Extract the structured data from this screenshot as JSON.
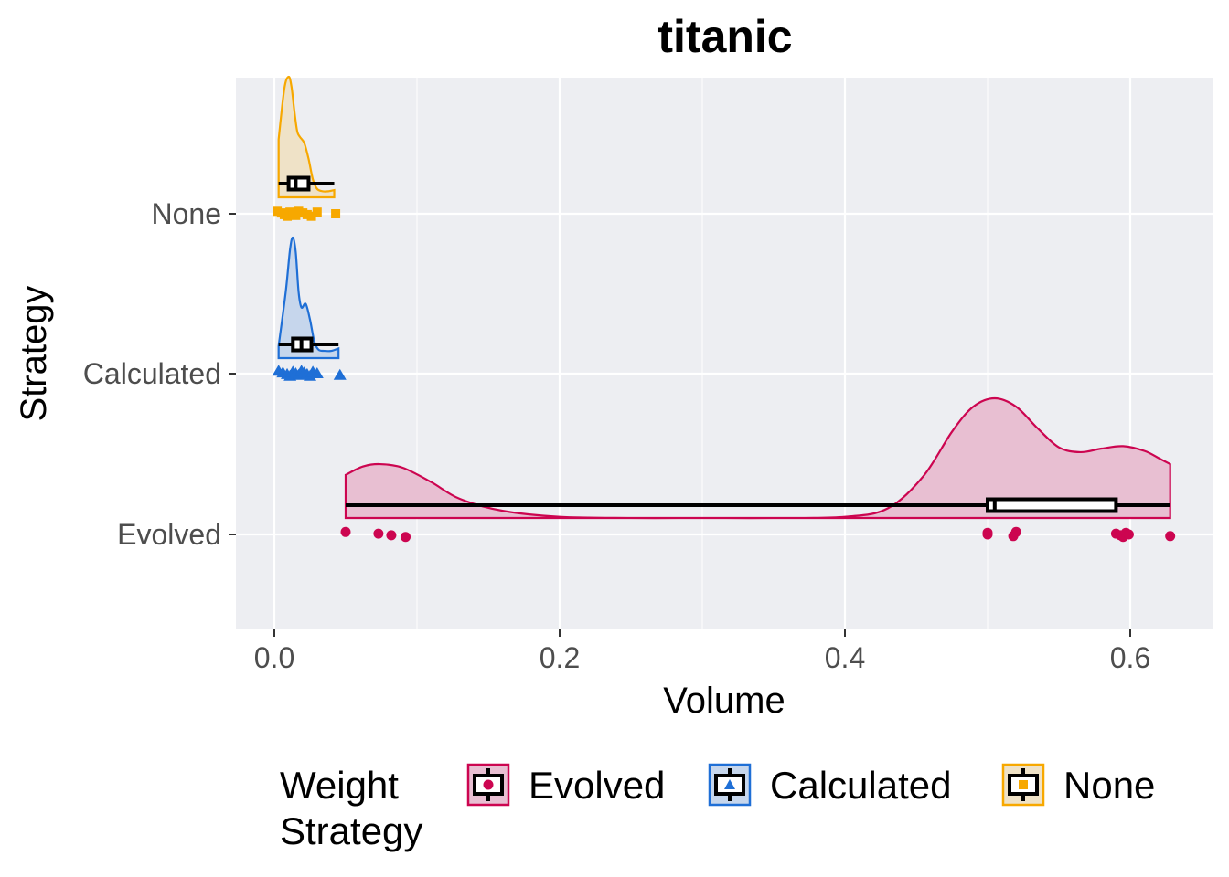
{
  "chart_data": {
    "type": "raincloud",
    "title": "titanic",
    "xlabel": "Volume",
    "ylabel": "Strategy",
    "xlim": [
      -0.066,
      0.65
    ],
    "x_ticks": [
      0.0,
      0.2,
      0.4,
      0.6
    ],
    "x_tick_labels": [
      "0.0",
      "0.2",
      "0.4",
      "0.6"
    ],
    "categories": [
      "Evolved",
      "Calculated",
      "None"
    ],
    "grid": true,
    "legend_placement": "bottom",
    "legend_title": "Weight\nStrategy",
    "series": [
      {
        "name": "Evolved",
        "color": "#cc0550",
        "fill": "#e8bfd2",
        "marker": "circle",
        "box": {
          "min": 0.05,
          "q1": 0.5,
          "median": 0.505,
          "q3": 0.59,
          "max": 0.628
        },
        "points": [
          0.05,
          0.073,
          0.082,
          0.092,
          0.5,
          0.5,
          0.518,
          0.52,
          0.59,
          0.593,
          0.595,
          0.597,
          0.599,
          0.628
        ],
        "density_x": [
          0.05,
          0.062,
          0.074,
          0.09,
          0.11,
          0.13,
          0.16,
          0.2,
          0.25,
          0.3,
          0.35,
          0.4,
          0.43,
          0.455,
          0.475,
          0.49,
          0.505,
          0.52,
          0.535,
          0.55,
          0.565,
          0.58,
          0.595,
          0.61,
          0.62,
          0.628
        ],
        "density_y": [
          0.36,
          0.43,
          0.45,
          0.42,
          0.3,
          0.16,
          0.06,
          0.01,
          0.0,
          0.0,
          0.0,
          0.01,
          0.08,
          0.35,
          0.72,
          0.93,
          1.0,
          0.93,
          0.75,
          0.59,
          0.55,
          0.58,
          0.6,
          0.56,
          0.5,
          0.45
        ]
      },
      {
        "name": "Calculated",
        "color": "#1f6fd6",
        "fill": "#c6d6ec",
        "marker": "triangle",
        "box": {
          "min": 0.003,
          "q1": 0.013,
          "median": 0.019,
          "q3": 0.026,
          "max": 0.045
        },
        "points": [
          0.003,
          0.006,
          0.009,
          0.011,
          0.013,
          0.015,
          0.017,
          0.019,
          0.021,
          0.023,
          0.025,
          0.027,
          0.03,
          0.046
        ],
        "density_x": [
          0.003,
          0.008,
          0.011,
          0.013,
          0.015,
          0.017,
          0.019,
          0.022,
          0.025,
          0.028,
          0.031,
          0.035,
          0.04,
          0.045
        ],
        "density_y": [
          0.1,
          0.55,
          0.9,
          1.0,
          0.88,
          0.55,
          0.42,
          0.45,
          0.32,
          0.14,
          0.07,
          0.06,
          0.06,
          0.08
        ]
      },
      {
        "name": "None",
        "color": "#f7a800",
        "fill": "#efe2c7",
        "marker": "square",
        "box": {
          "min": 0.003,
          "q1": 0.01,
          "median": 0.015,
          "q3": 0.024,
          "max": 0.042
        },
        "points": [
          0.002,
          0.005,
          0.007,
          0.009,
          0.011,
          0.013,
          0.015,
          0.017,
          0.02,
          0.023,
          0.026,
          0.03,
          0.043
        ],
        "density_x": [
          0.003,
          0.007,
          0.01,
          0.012,
          0.014,
          0.016,
          0.018,
          0.021,
          0.024,
          0.027,
          0.03,
          0.034,
          0.038,
          0.042
        ],
        "density_y": [
          0.48,
          0.9,
          1.0,
          0.92,
          0.72,
          0.55,
          0.5,
          0.45,
          0.32,
          0.15,
          0.07,
          0.05,
          0.05,
          0.06
        ]
      }
    ]
  }
}
